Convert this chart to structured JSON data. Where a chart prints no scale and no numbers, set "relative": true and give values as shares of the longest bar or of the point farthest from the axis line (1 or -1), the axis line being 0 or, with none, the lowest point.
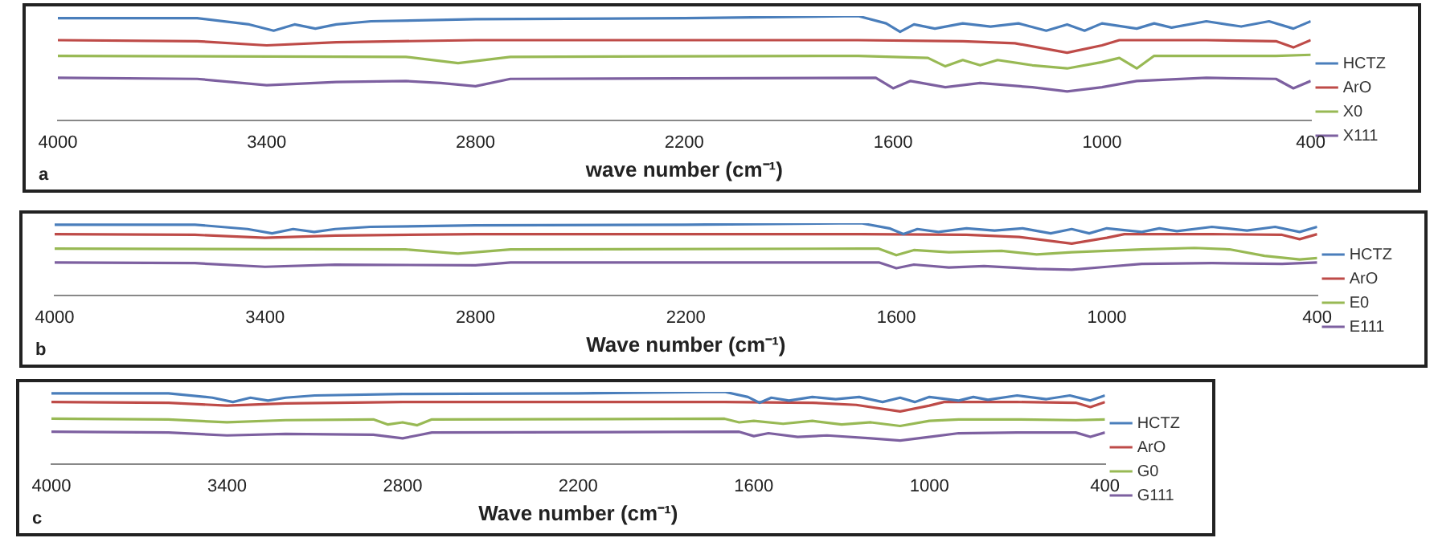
{
  "chart_data": [
    {
      "type": "line",
      "relative": true,
      "xlabel": "wave number (cm⁻¹)",
      "xlim": [
        4000,
        400
      ],
      "xticks": [
        4000,
        3400,
        2800,
        2200,
        1600,
        1000,
        400
      ],
      "grid": false,
      "legend": "right",
      "marker": "none",
      "line_style": "solid",
      "annotations": [
        "a"
      ],
      "series": [
        {
          "name": "HCTZ",
          "color": "#4a7ebb",
          "x": [
            4000,
            3600,
            3450,
            3380,
            3320,
            3260,
            3200,
            3100,
            2800,
            2200,
            1700,
            1620,
            1580,
            1540,
            1480,
            1400,
            1320,
            1240,
            1160,
            1100,
            1050,
            1000,
            900,
            850,
            800,
            700,
            600,
            520,
            450,
            400
          ],
          "values": [
            0.98,
            0.98,
            0.92,
            0.86,
            0.92,
            0.88,
            0.92,
            0.95,
            0.97,
            0.98,
            1,
            0.93,
            0.85,
            0.92,
            0.88,
            0.93,
            0.9,
            0.93,
            0.86,
            0.92,
            0.86,
            0.93,
            0.88,
            0.93,
            0.89,
            0.95,
            0.9,
            0.95,
            0.88,
            0.95
          ]
        },
        {
          "name": "ArO",
          "color": "#be4b48",
          "x": [
            4000,
            3600,
            3400,
            3200,
            2800,
            1700,
            1400,
            1250,
            1100,
            1000,
            950,
            700,
            500,
            450,
            400
          ],
          "values": [
            0.77,
            0.76,
            0.72,
            0.75,
            0.77,
            0.77,
            0.76,
            0.74,
            0.65,
            0.72,
            0.77,
            0.77,
            0.76,
            0.7,
            0.77
          ]
        },
        {
          "name": "X0",
          "color": "#98b954",
          "x": [
            4000,
            3000,
            2850,
            2700,
            1700,
            1500,
            1450,
            1400,
            1350,
            1300,
            1200,
            1100,
            1000,
            950,
            900,
            850,
            500,
            400
          ],
          "values": [
            0.62,
            0.61,
            0.55,
            0.61,
            0.62,
            0.6,
            0.52,
            0.58,
            0.53,
            0.58,
            0.53,
            0.5,
            0.56,
            0.6,
            0.5,
            0.62,
            0.62,
            0.63
          ]
        },
        {
          "name": "X111",
          "color": "#7d60a0",
          "x": [
            4000,
            3600,
            3400,
            3200,
            3000,
            2900,
            2800,
            2700,
            1650,
            1600,
            1550,
            1450,
            1350,
            1200,
            1100,
            1000,
            900,
            700,
            500,
            450,
            400
          ],
          "values": [
            0.41,
            0.4,
            0.34,
            0.37,
            0.38,
            0.36,
            0.33,
            0.4,
            0.41,
            0.31,
            0.38,
            0.32,
            0.36,
            0.32,
            0.28,
            0.32,
            0.38,
            0.41,
            0.4,
            0.31,
            0.38
          ]
        }
      ]
    },
    {
      "type": "line",
      "relative": true,
      "xlabel": "Wave number (cm⁻¹)",
      "xlim": [
        4000,
        400
      ],
      "xticks": [
        4000,
        3400,
        2800,
        2200,
        1600,
        1000,
        400
      ],
      "grid": false,
      "legend": "right",
      "marker": "none",
      "line_style": "solid",
      "annotations": [
        "b"
      ],
      "series": [
        {
          "name": "HCTZ",
          "color": "#4a7ebb",
          "x": [
            4000,
            3600,
            3450,
            3380,
            3320,
            3260,
            3200,
            3100,
            2800,
            2200,
            1700,
            1620,
            1580,
            1540,
            1480,
            1400,
            1320,
            1240,
            1160,
            1100,
            1050,
            1000,
            900,
            850,
            800,
            700,
            600,
            520,
            450,
            400
          ],
          "values": [
            0.98,
            0.98,
            0.92,
            0.86,
            0.92,
            0.88,
            0.92,
            0.95,
            0.97,
            0.98,
            1,
            0.93,
            0.85,
            0.92,
            0.88,
            0.93,
            0.9,
            0.93,
            0.86,
            0.92,
            0.86,
            0.93,
            0.88,
            0.93,
            0.89,
            0.95,
            0.9,
            0.95,
            0.88,
            0.95
          ]
        },
        {
          "name": "ArO",
          "color": "#be4b48",
          "x": [
            4000,
            3600,
            3400,
            3200,
            2800,
            1700,
            1400,
            1250,
            1100,
            1000,
            950,
            700,
            500,
            450,
            400
          ],
          "values": [
            0.85,
            0.84,
            0.8,
            0.83,
            0.85,
            0.85,
            0.84,
            0.81,
            0.72,
            0.8,
            0.85,
            0.85,
            0.84,
            0.78,
            0.85
          ]
        },
        {
          "name": "E0",
          "color": "#98b954",
          "x": [
            4000,
            3000,
            2850,
            2700,
            1700,
            1650,
            1600,
            1550,
            1450,
            1300,
            1200,
            1100,
            1000,
            900,
            750,
            650,
            550,
            450,
            400
          ],
          "values": [
            0.65,
            0.64,
            0.58,
            0.64,
            0.65,
            0.65,
            0.56,
            0.63,
            0.6,
            0.62,
            0.57,
            0.6,
            0.62,
            0.64,
            0.66,
            0.64,
            0.55,
            0.5,
            0.52
          ]
        },
        {
          "name": "E111",
          "color": "#7d60a0",
          "x": [
            4000,
            3600,
            3400,
            3200,
            2800,
            2700,
            1650,
            1600,
            1550,
            1450,
            1350,
            1200,
            1100,
            1000,
            900,
            700,
            500,
            400
          ],
          "values": [
            0.46,
            0.45,
            0.4,
            0.43,
            0.42,
            0.46,
            0.46,
            0.38,
            0.43,
            0.39,
            0.41,
            0.37,
            0.36,
            0.4,
            0.44,
            0.45,
            0.44,
            0.46
          ]
        }
      ]
    },
    {
      "type": "line",
      "relative": true,
      "xlabel": "Wave number (cm⁻¹)",
      "xlim": [
        4000,
        400
      ],
      "xticks": [
        4000,
        3400,
        2800,
        2200,
        1600,
        1000,
        400
      ],
      "grid": false,
      "legend": "right",
      "marker": "none",
      "line_style": "solid",
      "annotations": [
        "c"
      ],
      "series": [
        {
          "name": "HCTZ",
          "color": "#4a7ebb",
          "x": [
            4000,
            3600,
            3450,
            3380,
            3320,
            3260,
            3200,
            3100,
            2800,
            2200,
            1700,
            1620,
            1580,
            1540,
            1480,
            1400,
            1320,
            1240,
            1160,
            1100,
            1050,
            1000,
            900,
            850,
            800,
            700,
            600,
            520,
            450,
            400
          ],
          "values": [
            0.98,
            0.98,
            0.92,
            0.86,
            0.92,
            0.88,
            0.92,
            0.95,
            0.97,
            0.98,
            1,
            0.93,
            0.85,
            0.92,
            0.88,
            0.93,
            0.9,
            0.93,
            0.86,
            0.92,
            0.86,
            0.93,
            0.88,
            0.93,
            0.89,
            0.95,
            0.9,
            0.95,
            0.88,
            0.95
          ]
        },
        {
          "name": "ArO",
          "color": "#be4b48",
          "x": [
            4000,
            3600,
            3400,
            3200,
            2800,
            1700,
            1400,
            1250,
            1100,
            1000,
            950,
            700,
            500,
            450,
            400
          ],
          "values": [
            0.86,
            0.85,
            0.81,
            0.84,
            0.86,
            0.86,
            0.85,
            0.82,
            0.73,
            0.81,
            0.86,
            0.86,
            0.85,
            0.79,
            0.86
          ]
        },
        {
          "name": "G0",
          "color": "#98b954",
          "x": [
            4000,
            3600,
            3400,
            3200,
            2900,
            2850,
            2800,
            2750,
            2700,
            1700,
            1650,
            1600,
            1500,
            1400,
            1300,
            1200,
            1100,
            1000,
            900,
            700,
            500,
            400
          ],
          "values": [
            0.63,
            0.62,
            0.58,
            0.61,
            0.62,
            0.55,
            0.58,
            0.54,
            0.62,
            0.63,
            0.58,
            0.6,
            0.56,
            0.6,
            0.55,
            0.58,
            0.53,
            0.6,
            0.62,
            0.62,
            0.61,
            0.62
          ]
        },
        {
          "name": "G111",
          "color": "#7d60a0",
          "x": [
            4000,
            3600,
            3400,
            3200,
            2900,
            2800,
            2750,
            2700,
            1650,
            1600,
            1550,
            1450,
            1350,
            1200,
            1100,
            1000,
            900,
            700,
            500,
            450,
            400
          ],
          "values": [
            0.45,
            0.44,
            0.4,
            0.42,
            0.41,
            0.36,
            0.4,
            0.44,
            0.45,
            0.39,
            0.43,
            0.38,
            0.4,
            0.36,
            0.33,
            0.38,
            0.43,
            0.44,
            0.44,
            0.38,
            0.44
          ]
        }
      ]
    }
  ]
}
